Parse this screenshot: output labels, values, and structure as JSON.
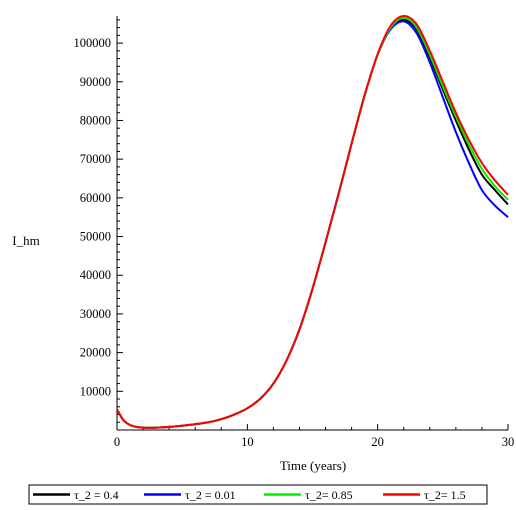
{
  "chart_data": {
    "type": "line",
    "title": "",
    "xlabel": "Time (years)",
    "ylabel": "I_hm",
    "xlim": [
      0,
      30
    ],
    "ylim": [
      0,
      107000
    ],
    "x_ticks": [
      0,
      10,
      20,
      30
    ],
    "y_ticks": [
      10000,
      20000,
      30000,
      40000,
      50000,
      60000,
      70000,
      80000,
      90000,
      100000
    ],
    "x_tick_labels": [
      "0",
      "10",
      "20",
      "30"
    ],
    "y_tick_labels": [
      "10000",
      "20000",
      "30000",
      "40000",
      "50000",
      "60000",
      "70000",
      "80000",
      "90000",
      "100000"
    ],
    "grid": false,
    "legend_position": "bottom",
    "x": [
      0,
      0.5,
      1,
      1.5,
      2,
      2.5,
      3,
      4,
      5,
      6,
      7,
      8,
      9,
      10,
      11,
      12,
      13,
      14,
      15,
      16,
      17,
      18,
      19,
      20,
      21,
      22,
      23,
      24,
      25,
      26,
      27,
      28,
      29,
      30
    ],
    "series": [
      {
        "name": "τ_2 = 0.4",
        "color": "#000000",
        "values": [
          5300,
          2500,
          1300,
          800,
          600,
          550,
          600,
          800,
          1100,
          1500,
          2000,
          2800,
          4000,
          5600,
          8100,
          12000,
          17900,
          26000,
          36500,
          48500,
          61000,
          74000,
          86500,
          97000,
          103800,
          106000,
          103500,
          96300,
          88000,
          80000,
          72500,
          66000,
          62000,
          58300
        ]
      },
      {
        "name": "τ_2 = 0.01",
        "color": "#0000ff",
        "values": [
          5300,
          2500,
          1300,
          800,
          600,
          550,
          600,
          800,
          1100,
          1500,
          2000,
          2800,
          4000,
          5600,
          8100,
          12000,
          17900,
          26000,
          36500,
          48500,
          61000,
          74000,
          86500,
          97000,
          103600,
          105600,
          102500,
          95000,
          86000,
          77000,
          69000,
          62000,
          58000,
          55000
        ]
      },
      {
        "name": "τ_2= 0.85",
        "color": "#00ee00",
        "values": [
          5300,
          2500,
          1300,
          800,
          600,
          550,
          600,
          800,
          1100,
          1500,
          2000,
          2800,
          4000,
          5600,
          8100,
          12000,
          17900,
          26000,
          36500,
          48500,
          61000,
          74000,
          86500,
          97000,
          104000,
          106500,
          104000,
          97000,
          88800,
          81000,
          73800,
          67500,
          63000,
          59500
        ]
      },
      {
        "name": "τ_2= 1.5",
        "color": "#ff0000",
        "values": [
          5300,
          2500,
          1300,
          800,
          600,
          550,
          600,
          800,
          1100,
          1500,
          2000,
          2800,
          4000,
          5600,
          8100,
          12000,
          17900,
          26000,
          36500,
          48500,
          61000,
          74000,
          86500,
          97200,
          104500,
          107000,
          104800,
          98000,
          90000,
          82000,
          75000,
          69000,
          64500,
          60800
        ]
      }
    ]
  }
}
